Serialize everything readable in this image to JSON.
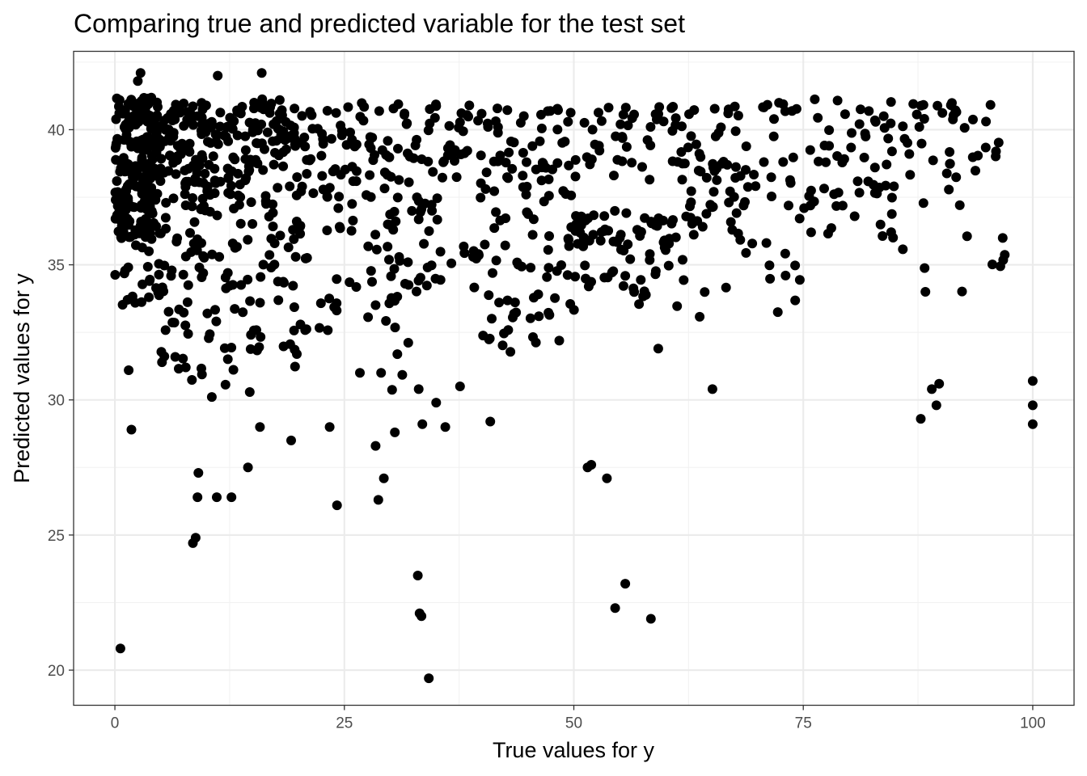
{
  "chart_data": {
    "type": "scatter",
    "title": "Comparing true and predicted variable for the test set",
    "xlabel": "True values for y",
    "ylabel": "Predicted values for y",
    "xlim": [
      -4.5,
      104.5
    ],
    "ylim": [
      18.7,
      42.9
    ],
    "x_ticks": [
      0,
      25,
      50,
      75,
      100
    ],
    "y_ticks": [
      20,
      25,
      30,
      35,
      40
    ],
    "x_tick_labels": [
      "0",
      "25",
      "50",
      "75",
      "100"
    ],
    "y_tick_labels": [
      "20",
      "25",
      "30",
      "35",
      "40"
    ],
    "grid": true,
    "theme": "bw",
    "point_color": "#000000",
    "outlier_points": {
      "x": [
        0.6,
        2.5,
        2.8,
        11.2,
        16,
        1.8,
        1.5,
        8.5,
        8.8,
        9,
        9.1,
        11.1,
        12.7,
        14.5,
        15.8,
        19.2,
        23.4,
        24.2,
        28.4,
        28.7,
        29.3,
        30.5,
        33,
        33.2,
        33.4,
        34.2,
        33.1,
        33.5,
        35,
        36,
        37.6,
        29,
        40.9,
        51.5,
        51.9,
        53.6,
        54.5,
        55.6,
        58.4,
        59.2,
        65.1,
        87.8,
        89,
        89.5,
        89.8,
        100,
        100,
        100,
        88.3,
        96
      ],
      "y": [
        20.8,
        41.8,
        42.1,
        42.0,
        42.1,
        28.9,
        31.1,
        24.7,
        24.9,
        26.4,
        27.3,
        26.4,
        26.4,
        27.5,
        29.0,
        28.5,
        29.0,
        26.1,
        28.3,
        26.3,
        27.1,
        28.8,
        23.5,
        22.1,
        22.0,
        19.7,
        30.4,
        29.1,
        29.9,
        29.0,
        30.5,
        31.0,
        29.2,
        27.5,
        27.6,
        27.1,
        22.3,
        23.2,
        21.9,
        31.9,
        30.4,
        29.3,
        30.4,
        29.8,
        30.6,
        30.7,
        29.8,
        29.1,
        34.0,
        39.2
      ]
    },
    "clusters": [
      {
        "x": [
          0,
          5
        ],
        "y": [
          36.0,
          41.2
        ],
        "n": 220
      },
      {
        "x": [
          0,
          5
        ],
        "y": [
          33.5,
          36.5
        ],
        "n": 26
      },
      {
        "x": [
          5,
          10
        ],
        "y": [
          38.0,
          41.0
        ],
        "n": 75
      },
      {
        "x": [
          5,
          10
        ],
        "y": [
          34.5,
          38.0
        ],
        "n": 35
      },
      {
        "x": [
          5,
          10
        ],
        "y": [
          30.5,
          34.5
        ],
        "n": 22
      },
      {
        "x": [
          10,
          15
        ],
        "y": [
          37.5,
          41.0
        ],
        "n": 60
      },
      {
        "x": [
          10,
          15
        ],
        "y": [
          33.0,
          37.5
        ],
        "n": 25
      },
      {
        "x": [
          10,
          15
        ],
        "y": [
          30.0,
          33.0
        ],
        "n": 12
      },
      {
        "x": [
          15,
          20
        ],
        "y": [
          38.5,
          41.2
        ],
        "n": 55
      },
      {
        "x": [
          15,
          20
        ],
        "y": [
          34.0,
          38.5
        ],
        "n": 28
      },
      {
        "x": [
          15,
          20
        ],
        "y": [
          31.0,
          34.0
        ],
        "n": 14
      },
      {
        "x": [
          20,
          25
        ],
        "y": [
          37.5,
          40.8
        ],
        "n": 35
      },
      {
        "x": [
          20,
          25
        ],
        "y": [
          32.5,
          37.5
        ],
        "n": 20
      },
      {
        "x": [
          25,
          32
        ],
        "y": [
          38.0,
          41.0
        ],
        "n": 40
      },
      {
        "x": [
          25,
          32
        ],
        "y": [
          33.5,
          38.0
        ],
        "n": 34
      },
      {
        "x": [
          25,
          32
        ],
        "y": [
          30.3,
          33.5
        ],
        "n": 8
      },
      {
        "x": [
          32,
          40
        ],
        "y": [
          38.0,
          41.2
        ],
        "n": 40
      },
      {
        "x": [
          32,
          40
        ],
        "y": [
          34.0,
          38.0
        ],
        "n": 32
      },
      {
        "x": [
          40,
          50
        ],
        "y": [
          38.5,
          40.8
        ],
        "n": 40
      },
      {
        "x": [
          40,
          50
        ],
        "y": [
          33.0,
          38.5
        ],
        "n": 60
      },
      {
        "x": [
          40,
          50
        ],
        "y": [
          31.5,
          33.0
        ],
        "n": 10
      },
      {
        "x": [
          50,
          60
        ],
        "y": [
          38.0,
          41.0
        ],
        "n": 38
      },
      {
        "x": [
          50,
          60
        ],
        "y": [
          35.5,
          37.0
        ],
        "n": 45
      },
      {
        "x": [
          50,
          60
        ],
        "y": [
          33.0,
          35.5
        ],
        "n": 24
      },
      {
        "x": [
          60,
          67
        ],
        "y": [
          38.5,
          41.2
        ],
        "n": 30
      },
      {
        "x": [
          60,
          67
        ],
        "y": [
          33.0,
          38.5
        ],
        "n": 34
      },
      {
        "x": [
          67,
          75
        ],
        "y": [
          37.5,
          41.0
        ],
        "n": 30
      },
      {
        "x": [
          67,
          75
        ],
        "y": [
          33.0,
          37.5
        ],
        "n": 20
      },
      {
        "x": [
          75,
          85
        ],
        "y": [
          37.5,
          41.2
        ],
        "n": 45
      },
      {
        "x": [
          75,
          85
        ],
        "y": [
          36.0,
          37.5
        ],
        "n": 15
      },
      {
        "x": [
          85,
          97
        ],
        "y": [
          38.0,
          41.0
        ],
        "n": 36
      },
      {
        "x": [
          85,
          97
        ],
        "y": [
          34.0,
          38.0
        ],
        "n": 12
      }
    ]
  }
}
